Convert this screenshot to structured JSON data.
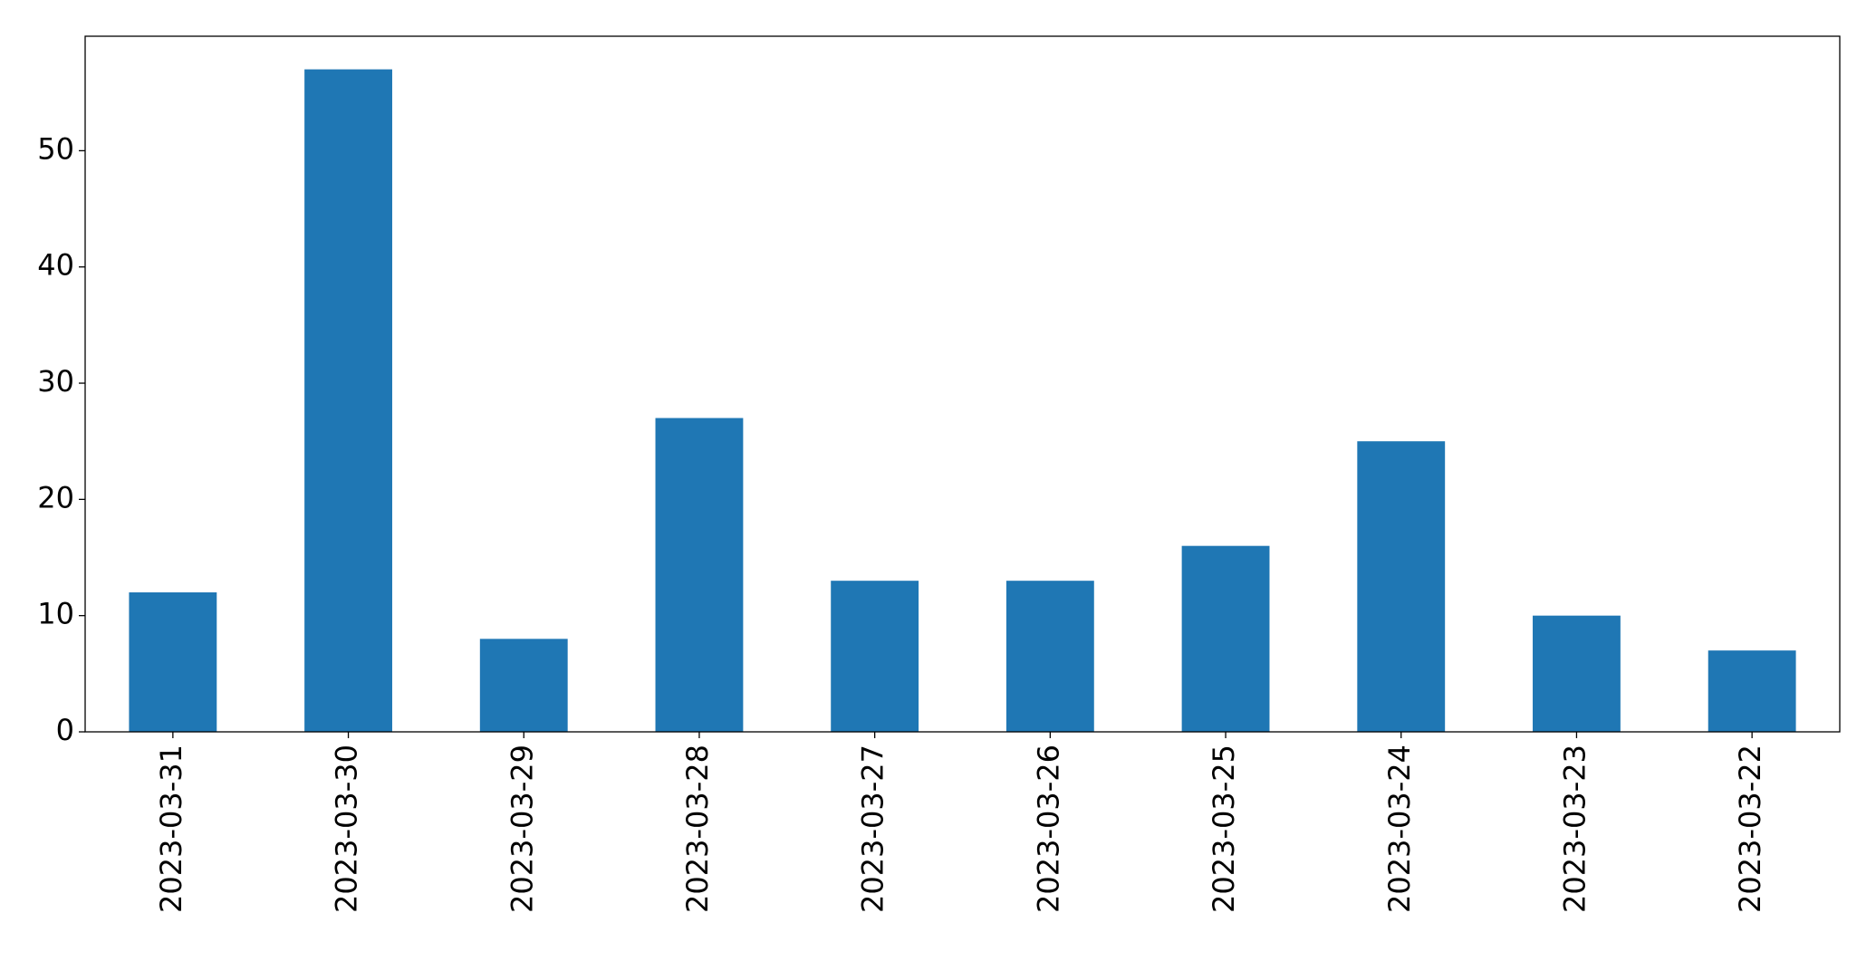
{
  "chart_data": {
    "type": "bar",
    "categories": [
      "2023-03-31",
      "2023-03-30",
      "2023-03-29",
      "2023-03-28",
      "2023-03-27",
      "2023-03-26",
      "2023-03-25",
      "2023-03-24",
      "2023-03-23",
      "2023-03-22"
    ],
    "values": [
      12,
      57,
      8,
      27,
      13,
      13,
      16,
      25,
      10,
      7
    ],
    "color": "#1f77b4",
    "ylim": [
      0,
      59.85
    ],
    "yticks": [
      0,
      10,
      20,
      30,
      40,
      50
    ],
    "grid": false
  }
}
